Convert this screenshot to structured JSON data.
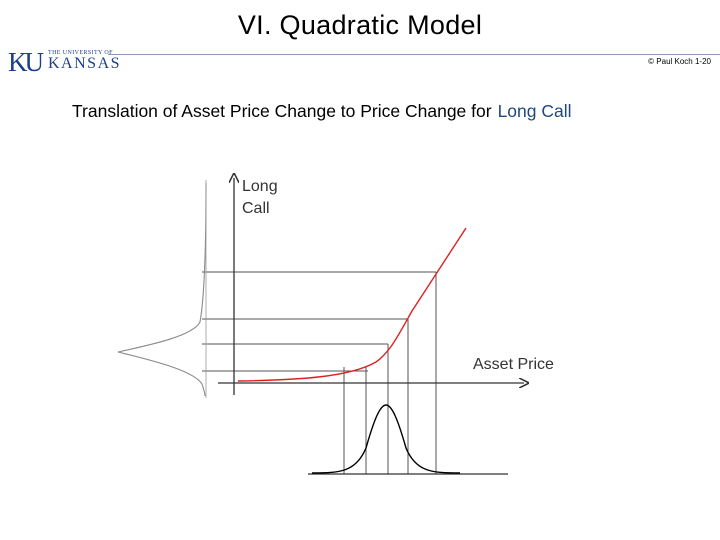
{
  "slide": {
    "title": "VI.  Quadratic Model",
    "copyright": "© Paul Koch 1-20",
    "subtitle_main": "Translation of Asset Price Change to Price Change for",
    "subtitle_accent": "Long Call"
  },
  "logo": {
    "ku": "KU",
    "university_line": "THE UNIVERSITY OF",
    "name": "KANSAS",
    "color": "#1b3f8b"
  },
  "diagram": {
    "y_axis_label_line1": "Long",
    "y_axis_label_line2": "Call",
    "x_axis_label": "Asset Price",
    "payoff_color": "#e02020",
    "axis_color": "#333333",
    "projection_color": "#555555",
    "distribution_color": "#000000",
    "side_distribution_color": "#8a8a8a"
  }
}
